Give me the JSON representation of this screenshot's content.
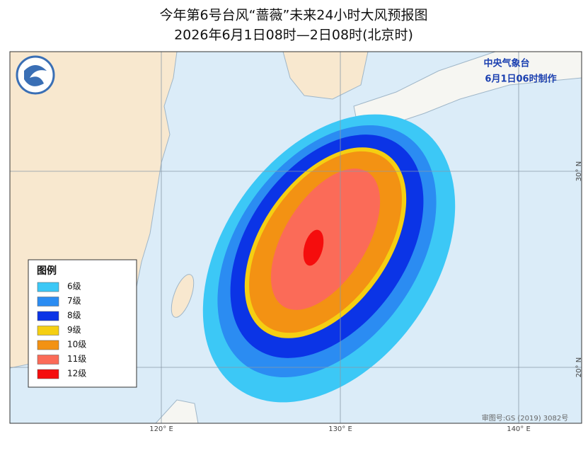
{
  "header": {
    "title": "今年第6号台风“蔷薇”未来24小时大风预报图",
    "subtitle": "2026年6月1日08时—2日08时(北京时)"
  },
  "agency": {
    "name": "中央气象台",
    "issued": "6月1日06时制作"
  },
  "legend": {
    "title": "图例",
    "items": [
      {
        "label": "6级",
        "color": "#3cc8f6"
      },
      {
        "label": "7级",
        "color": "#2b8cf2"
      },
      {
        "label": "8级",
        "color": "#0b34e6"
      },
      {
        "label": "9级",
        "color": "#f5cf12"
      },
      {
        "label": "10级",
        "color": "#f39213"
      },
      {
        "label": "11级",
        "color": "#fb6b58"
      },
      {
        "label": "12级",
        "color": "#f50d0d"
      }
    ]
  },
  "axes": {
    "longitude": [
      "120° E",
      "130° E",
      "140° E"
    ],
    "latitude": [
      "30° N",
      "20° N"
    ]
  },
  "map_approval": "审图号:GS (2019) 3082号"
}
